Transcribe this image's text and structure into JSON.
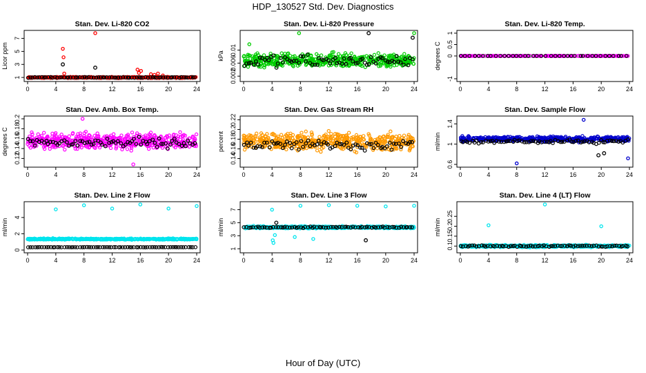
{
  "title": "HDP_130527  Std. Dev. Diagnostics",
  "xlabel": "Hour of Day (UTC)",
  "chart_data": [
    {
      "type": "scatter",
      "title": "Stan. Dev. Li-820 CO2",
      "ylabel": "Licor ppm",
      "xlim": [
        0,
        24
      ],
      "ylim": [
        0.8,
        7.8
      ],
      "xticks": [
        0,
        4,
        8,
        12,
        16,
        20,
        24
      ],
      "yticks": [
        1,
        3,
        5,
        7
      ],
      "series": [
        {
          "color": "#ff0000",
          "base": 1.0,
          "spread": 0.12,
          "x": [
            5.0,
            5.1,
            5.2,
            9.6,
            15.6,
            15.8,
            16.1,
            17.5,
            18.0,
            18.5,
            19.2
          ],
          "y": [
            5.4,
            4.1,
            1.6,
            7.8,
            2.2,
            1.7,
            2.0,
            1.5,
            1.4,
            1.6,
            1.3
          ]
        },
        {
          "color": "#000000",
          "base": 1.0,
          "spread": 0.08,
          "x": [
            5.0,
            9.6
          ],
          "y": [
            3.0,
            2.5
          ]
        }
      ]
    },
    {
      "type": "scatter",
      "title": "Stan. Dev. Li-820 Pressure",
      "ylabel": "kPa",
      "xlim": [
        0,
        24
      ],
      "ylim": [
        0.0012,
        0.0152
      ],
      "xticks": [
        0,
        4,
        8,
        12,
        16,
        20,
        24
      ],
      "yticks": [
        0.002,
        0.006,
        0.01
      ],
      "series": [
        {
          "color": "#00cc00",
          "base": 0.0068,
          "spread": 0.003,
          "x": [
            7.8,
            24.0,
            0.8
          ],
          "y": [
            0.0152,
            0.0152,
            0.0118
          ]
        },
        {
          "color": "#000000",
          "base": 0.0066,
          "spread": 0.0028,
          "x": [
            17.6,
            23.8
          ],
          "y": [
            0.0152,
            0.0138
          ]
        }
      ]
    },
    {
      "type": "scatter",
      "title": "Stan. Dev. Li-820 Temp.",
      "ylabel": "degrees C",
      "xlim": [
        0,
        24
      ],
      "ylim": [
        -1.0,
        1.0
      ],
      "xticks": [
        0,
        4,
        8,
        12,
        16,
        20,
        24
      ],
      "yticks": [
        -1.0,
        0.0,
        0.5,
        1.0
      ],
      "series": [
        {
          "color": "#ff00ff",
          "base": 0.0,
          "spread": 0.0,
          "x": [],
          "y": []
        },
        {
          "color": "#000000",
          "base": 0.0,
          "spread": 0.0,
          "x": [],
          "y": []
        }
      ]
    },
    {
      "type": "scatter",
      "title": "Stan. Dev. Amb. Box Temp.",
      "ylabel": "degrees C",
      "xlim": [
        0,
        24
      ],
      "ylim": [
        0.108,
        0.2
      ],
      "xticks": [
        0,
        4,
        8,
        12,
        16,
        20,
        24
      ],
      "yticks": [
        0.12,
        0.14,
        0.16,
        0.18,
        0.2
      ],
      "series": [
        {
          "color": "#ff00ff",
          "base": 0.155,
          "spread": 0.022,
          "x": [
            7.8,
            15.0
          ],
          "y": [
            0.2,
            0.108
          ]
        },
        {
          "color": "#000000",
          "base": 0.152,
          "spread": 0.015,
          "x": [],
          "y": []
        }
      ]
    },
    {
      "type": "scatter",
      "title": "Stan. Dev. Gas Stream RH",
      "ylabel": "percent",
      "xlim": [
        0,
        24
      ],
      "ylim": [
        0.128,
        0.222
      ],
      "xticks": [
        0,
        4,
        8,
        12,
        16,
        20,
        24
      ],
      "yticks": [
        0.14,
        0.16,
        0.18,
        0.2,
        0.22
      ],
      "series": [
        {
          "color": "#ff9900",
          "base": 0.175,
          "spread": 0.026,
          "x": [],
          "y": []
        },
        {
          "color": "#000000",
          "base": 0.168,
          "spread": 0.016,
          "x": [],
          "y": []
        }
      ]
    },
    {
      "type": "scatter",
      "title": "Stan. Dev. Sample Flow",
      "ylabel": "ml/min",
      "xlim": [
        0,
        24
      ],
      "ylim": [
        0.6,
        1.5
      ],
      "xticks": [
        0,
        4,
        8,
        12,
        16,
        20,
        24
      ],
      "yticks": [
        0.6,
        1.0,
        1.4
      ],
      "series": [
        {
          "color": "#0000cc",
          "base": 1.1,
          "spread": 0.07,
          "x": [
            8.0,
            23.8,
            17.5
          ],
          "y": [
            0.62,
            0.72,
            1.48
          ]
        },
        {
          "color": "#000000",
          "base": 1.05,
          "spread": 0.05,
          "x": [
            19.6,
            20.4
          ],
          "y": [
            0.78,
            0.82
          ]
        }
      ]
    },
    {
      "type": "scatter",
      "title": "Stan. Dev. Line 2 Flow",
      "ylabel": "ml/min",
      "xlim": [
        0,
        24
      ],
      "ylim": [
        0,
        5.6
      ],
      "xticks": [
        0,
        4,
        8,
        12,
        16,
        20,
        24
      ],
      "yticks": [
        0,
        2,
        4
      ],
      "series": [
        {
          "color": "#00e5ee",
          "base": 1.35,
          "spread": 0.12,
          "x": [
            4.0,
            8.0,
            12.0,
            16.0,
            20.0,
            24.0
          ],
          "y": [
            5.0,
            5.5,
            5.1,
            5.6,
            5.1,
            5.4
          ]
        },
        {
          "color": "#000000",
          "base": 0.35,
          "spread": 0.02,
          "x": [],
          "y": []
        }
      ]
    },
    {
      "type": "scatter",
      "title": "Stan. Dev. Line 3 Flow",
      "ylabel": "ml/min",
      "xlim": [
        0,
        24
      ],
      "ylim": [
        0.8,
        7.8
      ],
      "xticks": [
        0,
        4,
        8,
        12,
        16,
        20,
        24
      ],
      "yticks": [
        1,
        3,
        5,
        7
      ],
      "series": [
        {
          "color": "#00e5ee",
          "base": 4.3,
          "spread": 0.25,
          "x": [
            4.0,
            4.1,
            4.2,
            4.4,
            8.0,
            12.0,
            16.0,
            20.0,
            24.0,
            7.2,
            9.8
          ],
          "y": [
            7.0,
            2.3,
            1.9,
            3.1,
            7.6,
            7.7,
            7.6,
            7.5,
            7.6,
            2.8,
            2.5
          ]
        },
        {
          "color": "#000000",
          "base": 4.3,
          "spread": 0.15,
          "x": [
            4.6,
            17.2
          ],
          "y": [
            5.0,
            2.3
          ]
        }
      ]
    },
    {
      "type": "scatter",
      "title": "Stan. Dev. Line 4 (LT) Flow",
      "ylabel": "ml/min",
      "xlim": [
        0,
        24
      ],
      "ylim": [
        0.08,
        0.31
      ],
      "xticks": [
        0,
        4,
        8,
        12,
        16,
        20,
        24
      ],
      "yticks": [
        0.1,
        0.15,
        0.2,
        0.25
      ],
      "series": [
        {
          "color": "#00e5ee",
          "base": 0.1,
          "spread": 0.008,
          "x": [
            4.0,
            12.0,
            20.0
          ],
          "y": [
            0.205,
            0.31,
            0.2
          ]
        },
        {
          "color": "#000000",
          "base": 0.1,
          "spread": 0.006,
          "x": [],
          "y": []
        }
      ]
    }
  ]
}
